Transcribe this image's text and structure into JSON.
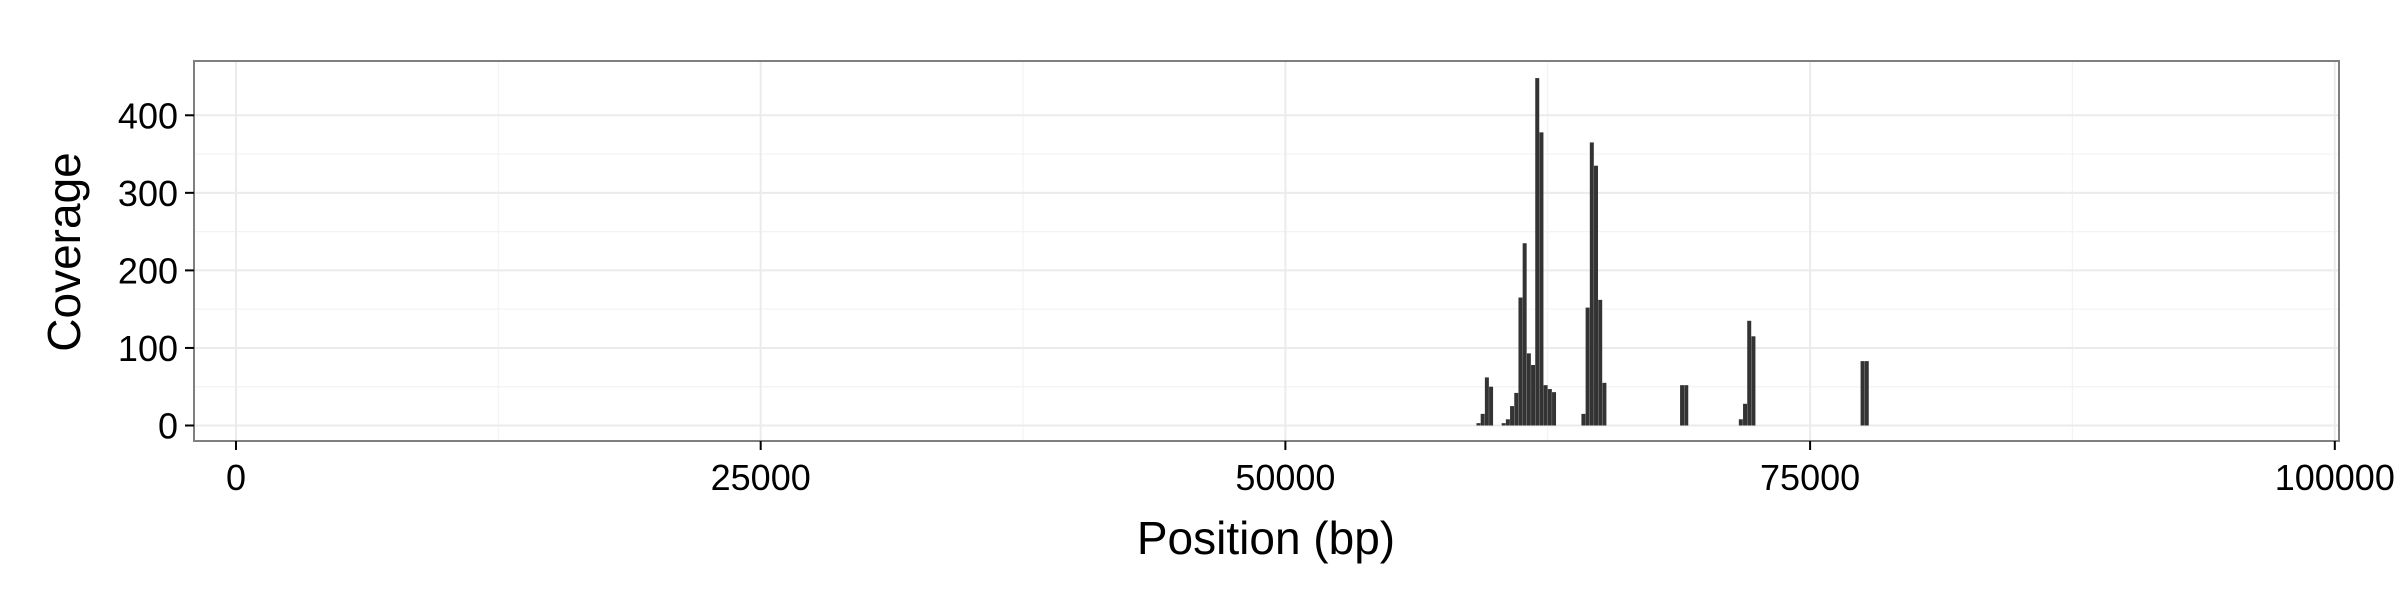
{
  "chart_data": {
    "type": "bar",
    "title": "",
    "xlabel": "Position (bp)",
    "ylabel": "Coverage",
    "xlim": [
      -2000,
      100200
    ],
    "ylim": [
      -20,
      470
    ],
    "x_ticks": [
      0,
      25000,
      50000,
      75000,
      100000
    ],
    "y_ticks": [
      0,
      100,
      200,
      300,
      400
    ],
    "grid": true,
    "legend": "none",
    "bar_color": "#333333",
    "panel_background": "#ffffff",
    "grid_color": "#ebebeb",
    "border_color": "#7f7f7f",
    "bar_width_bp": 190,
    "points": [
      {
        "x": 59200,
        "y": 3
      },
      {
        "x": 59400,
        "y": 15
      },
      {
        "x": 59600,
        "y": 62
      },
      {
        "x": 59800,
        "y": 50
      },
      {
        "x": 60400,
        "y": 3
      },
      {
        "x": 60600,
        "y": 8
      },
      {
        "x": 60800,
        "y": 25
      },
      {
        "x": 61000,
        "y": 42
      },
      {
        "x": 61200,
        "y": 165
      },
      {
        "x": 61400,
        "y": 235
      },
      {
        "x": 61600,
        "y": 93
      },
      {
        "x": 61800,
        "y": 78
      },
      {
        "x": 62000,
        "y": 448
      },
      {
        "x": 62200,
        "y": 378
      },
      {
        "x": 62400,
        "y": 52
      },
      {
        "x": 62600,
        "y": 47
      },
      {
        "x": 62800,
        "y": 43
      },
      {
        "x": 64200,
        "y": 15
      },
      {
        "x": 64400,
        "y": 152
      },
      {
        "x": 64600,
        "y": 365
      },
      {
        "x": 64800,
        "y": 335
      },
      {
        "x": 65000,
        "y": 162
      },
      {
        "x": 65200,
        "y": 55
      },
      {
        "x": 68900,
        "y": 52
      },
      {
        "x": 69100,
        "y": 52
      },
      {
        "x": 71700,
        "y": 8
      },
      {
        "x": 71900,
        "y": 28
      },
      {
        "x": 72100,
        "y": 135
      },
      {
        "x": 72300,
        "y": 115
      },
      {
        "x": 77500,
        "y": 83
      },
      {
        "x": 77700,
        "y": 83
      }
    ]
  }
}
